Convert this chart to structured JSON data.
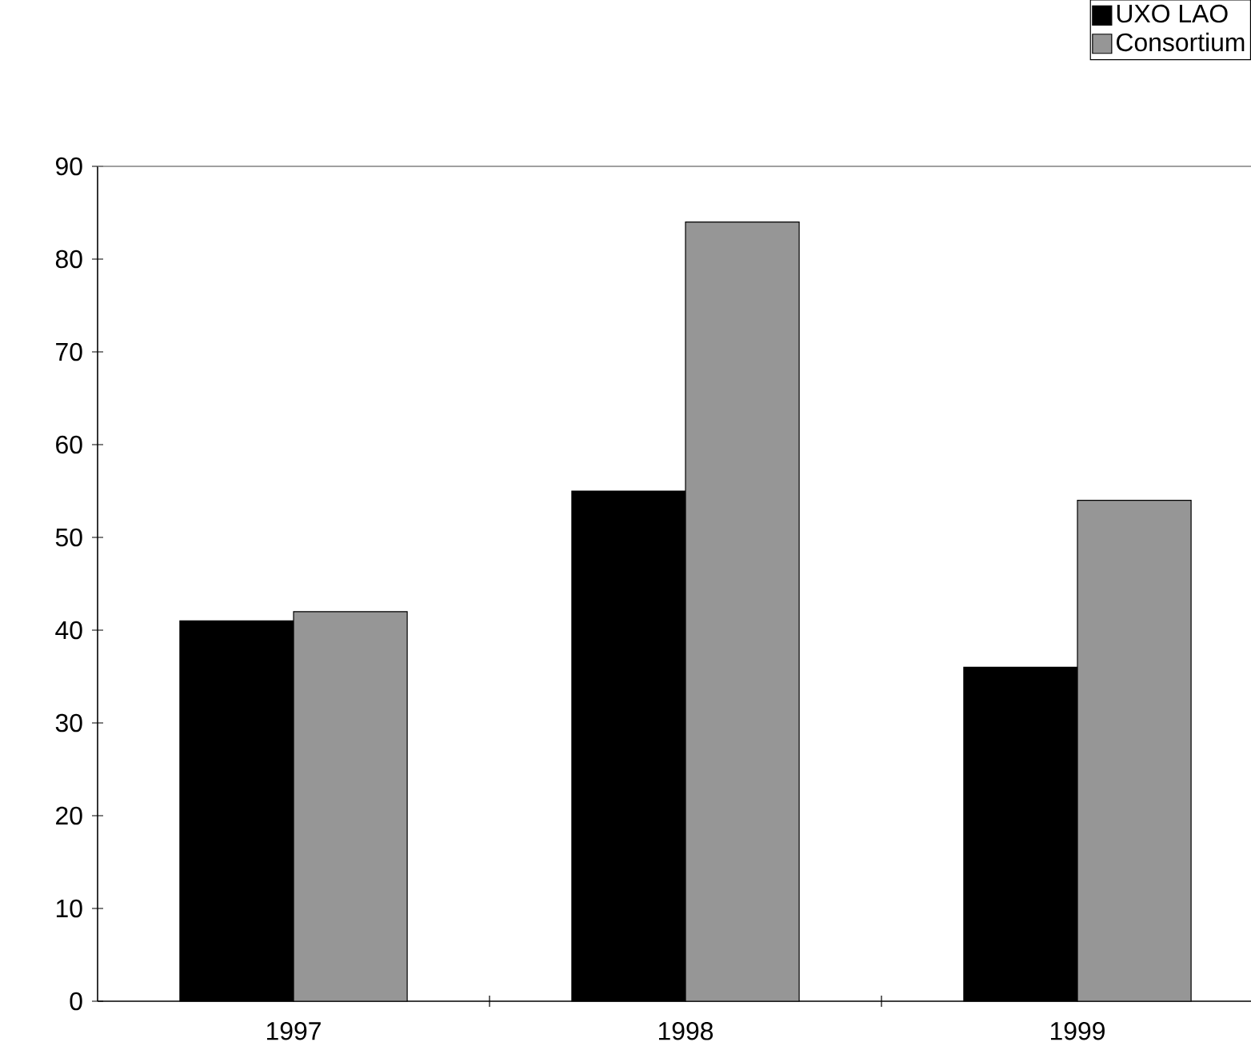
{
  "chart_data": {
    "type": "bar",
    "categories": [
      "1997",
      "1998",
      "1999"
    ],
    "series": [
      {
        "name": "UXO LAO",
        "color": "#000000",
        "values": [
          41,
          55,
          36
        ]
      },
      {
        "name": "Consortium",
        "color": "#969696",
        "values": [
          42,
          84,
          54
        ]
      }
    ],
    "ylim": [
      0,
      90
    ],
    "yticks": [
      0,
      10,
      20,
      30,
      40,
      50,
      60,
      70,
      80,
      90
    ],
    "grid": false,
    "legend": "top right"
  }
}
